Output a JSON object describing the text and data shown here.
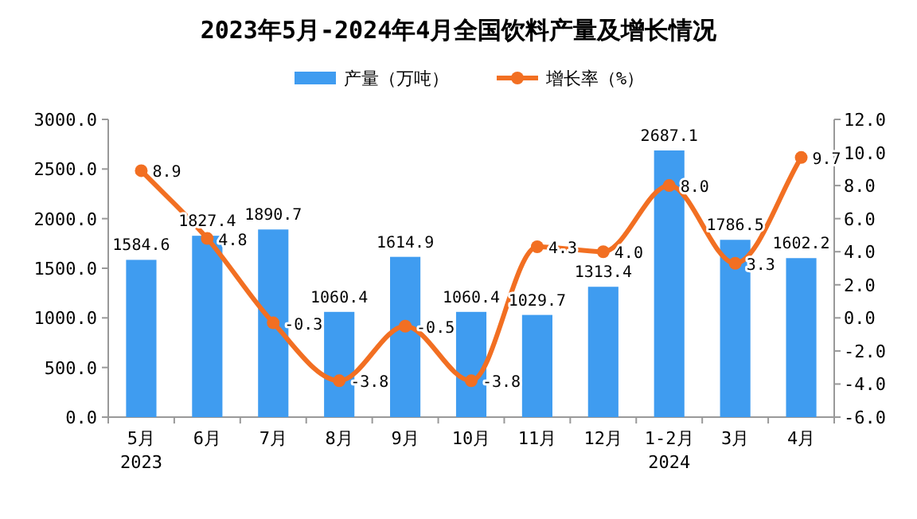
{
  "chart_data": {
    "type": "bar",
    "title": "2023年5月-2024年4月全国饮料产量及增长情况",
    "categories": [
      "5月\n2023",
      "6月",
      "7月",
      "8月",
      "9月",
      "10月",
      "11月",
      "12月",
      "1-2月\n2024",
      "3月",
      "4月"
    ],
    "series": [
      {
        "name": "产量（万吨）",
        "color": "#3f9cf0",
        "values": [
          1584.6,
          1827.4,
          1890.7,
          1060.4,
          1614.9,
          1060.4,
          1029.7,
          1313.4,
          2687.1,
          1786.5,
          1602.2
        ],
        "value_labels": [
          "1584.6",
          "1827.4",
          "1890.7",
          "1060.4",
          "1614.9",
          "1060.4",
          "1029.7",
          "1313.4",
          "2687.1",
          "1786.5",
          "1602.2"
        ]
      },
      {
        "name": "增长率（%）",
        "type": "line",
        "axis": "y2",
        "color": "#f26f22",
        "values": [
          8.9,
          4.8,
          -0.3,
          -3.8,
          -0.5,
          -3.8,
          4.3,
          4.0,
          8.0,
          3.3,
          9.7
        ],
        "value_labels": [
          "8.9",
          "4.8",
          "-0.3",
          "-3.8",
          "-0.5",
          "-3.8",
          "4.3",
          "4.0",
          "8.0",
          "3.3",
          "9.7"
        ]
      }
    ],
    "ylim": [
      0,
      3000
    ],
    "yticks": [
      {
        "value": 0,
        "label": "0.0"
      },
      {
        "value": 500,
        "label": "500.0"
      },
      {
        "value": 1000,
        "label": "1000.0"
      },
      {
        "value": 1500,
        "label": "1500.0"
      },
      {
        "value": 2000,
        "label": "2000.0"
      },
      {
        "value": 2500,
        "label": "2500.0"
      },
      {
        "value": 3000,
        "label": "3000.0"
      }
    ],
    "y2lim": [
      -6,
      12
    ],
    "y2ticks": [
      {
        "value": -6,
        "label": "-6.0"
      },
      {
        "value": -4,
        "label": "-4.0"
      },
      {
        "value": -2,
        "label": "-2.0"
      },
      {
        "value": 0,
        "label": "0.0"
      },
      {
        "value": 2,
        "label": "2.0"
      },
      {
        "value": 4,
        "label": "4.0"
      },
      {
        "value": 6,
        "label": "6.0"
      },
      {
        "value": 8,
        "label": "8.0"
      },
      {
        "value": 10,
        "label": "10.0"
      },
      {
        "value": 12,
        "label": "12.0"
      }
    ],
    "legend": "top",
    "marker": "circle"
  }
}
